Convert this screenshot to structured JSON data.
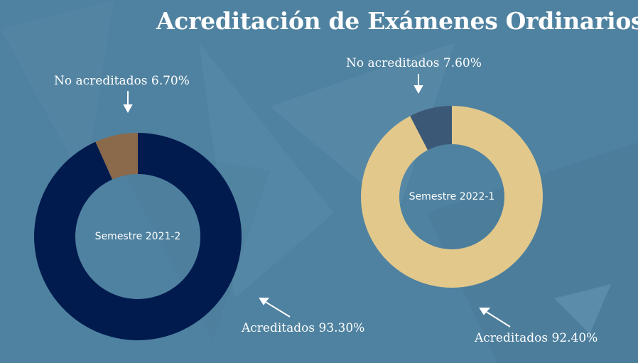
{
  "title": "Acreditación de Exámenes Ordinarios",
  "chart_data": [
    {
      "type": "pie",
      "center_label": "Semestre 2021-2",
      "slices": [
        {
          "label": "No acreditados",
          "value": 6.7,
          "text": "No acreditados 6.70%",
          "color": "#8a6a4a"
        },
        {
          "label": "Acreditados",
          "value": 93.3,
          "text": "Acreditados 93.30%",
          "color": "#021b4f"
        }
      ]
    },
    {
      "type": "pie",
      "center_label": "Semestre 2022-1",
      "slices": [
        {
          "label": "No acreditados",
          "value": 7.6,
          "text": "No acreditados 7.60%",
          "color": "#3c5877"
        },
        {
          "label": "Acreditados",
          "value": 92.4,
          "text": "Acreditados 92.40%",
          "color": "#e2c88b"
        }
      ]
    }
  ]
}
